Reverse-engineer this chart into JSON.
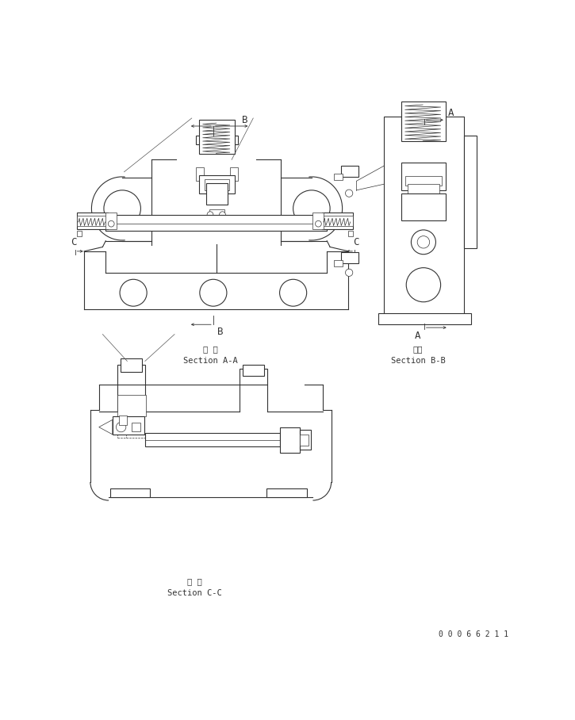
{
  "bg_color": "#ffffff",
  "line_color": "#333333",
  "fig_width": 7.25,
  "fig_height": 9.08,
  "dpi": 100,
  "section_AA_label": "断 面\nSection A-A",
  "section_BB_label": "断面\nSection B-B",
  "section_CC_label": "断 面\nSection C-C",
  "doc_number": "0 0 0 6 6 2 1 1",
  "label_A": "A",
  "label_B": "B",
  "label_C": "C"
}
